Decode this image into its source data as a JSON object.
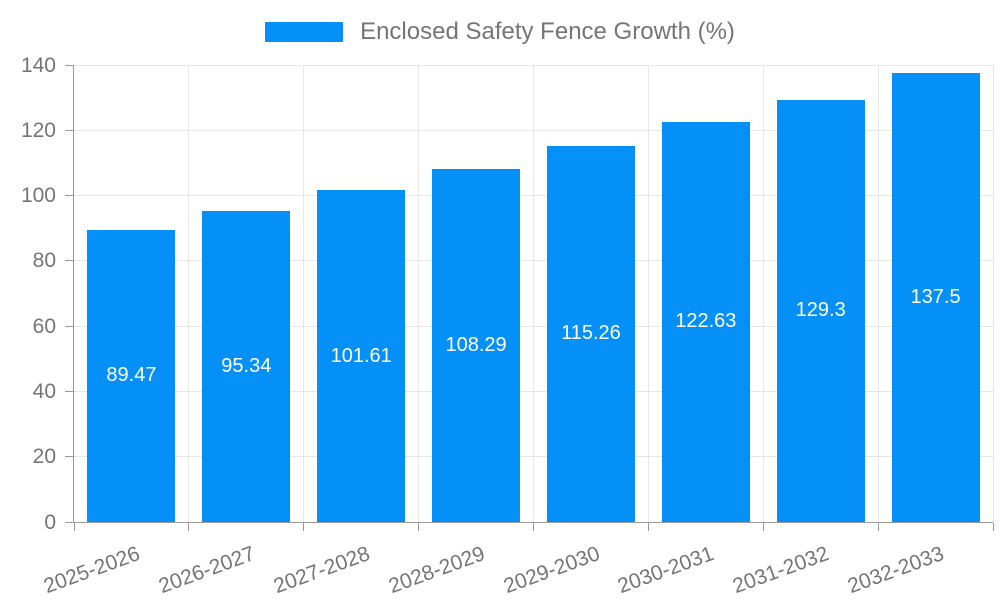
{
  "legend": {
    "label": "Enclosed Safety Fence Growth (%)"
  },
  "chart_data": {
    "type": "bar",
    "title": "Enclosed Safety Fence Growth (%)",
    "categories": [
      "2025-2026",
      "2026-2027",
      "2027-2028",
      "2028-2029",
      "2029-2030",
      "2030-2031",
      "2031-2032",
      "2032-2033"
    ],
    "values": [
      89.47,
      95.34,
      101.61,
      108.29,
      115.26,
      122.63,
      129.3,
      137.5
    ],
    "value_labels": [
      "89.47",
      "95.34",
      "101.61",
      "108.29",
      "115.26",
      "122.63",
      "129.3",
      "137.5"
    ],
    "xlabel": "",
    "ylabel": "",
    "ylim": [
      0,
      140
    ],
    "ytick_step": 20,
    "ytick_labels": [
      "0",
      "20",
      "40",
      "60",
      "80",
      "100",
      "120",
      "140"
    ],
    "grid": true,
    "legend_position": "top-center",
    "bar_color": "#0590f8",
    "bar_label_color": "#ffffff",
    "axis_color": "#999999",
    "grid_color": "#e6e6e6",
    "tick_label_color": "#757575"
  }
}
